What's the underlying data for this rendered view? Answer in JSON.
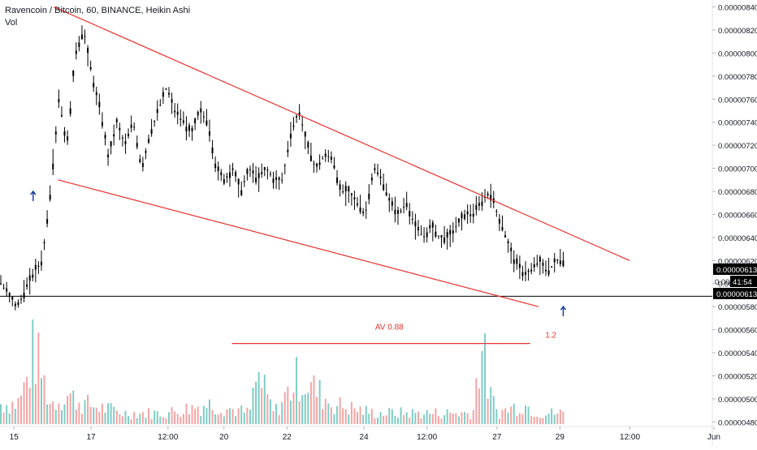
{
  "header": {
    "symbol_line": "Ravencoin / Bitcoin, 60, BINANCE, Heikin Ashi",
    "volume_label": "Vol"
  },
  "colors": {
    "candle": "#000000",
    "volume_up": "#7fcdc4",
    "volume_down": "#f4a4a4",
    "trendline": "#e8322f",
    "annotation_text": "#e8322f",
    "arrow": "#1a3d9e",
    "axis_text": "#131722",
    "price_tag_bg": "#000000",
    "price_tag_text": "#ffffff"
  },
  "chart_data": {
    "type": "candlestick",
    "y_ticks": [
      "0.00000840",
      "0.00000820",
      "0.00000800",
      "0.00000780",
      "0.00000760",
      "0.00000740",
      "0.00000720",
      "0.00000700",
      "0.00000680",
      "0.00000660",
      "0.00000640",
      "0.00000620",
      "0.00000600",
      "0.00000580",
      "0.00000560",
      "0.00000540",
      "0.00000520",
      "0.00000500",
      "0.00000480"
    ],
    "x_ticks": [
      "15",
      "17",
      "12:00",
      "20",
      "22",
      "24",
      "12:00",
      "27",
      "29",
      "12:00",
      "Jun"
    ],
    "ylim": [
      4.76e-06,
      8.46e-06
    ],
    "close_points": [
      [
        0,
        6e-06
      ],
      [
        2,
        5.8e-06
      ],
      [
        4,
        6.1e-06
      ],
      [
        5,
        6.2e-06
      ],
      [
        6,
        6.8e-06
      ],
      [
        7,
        7.6e-06
      ],
      [
        8,
        7.2e-06
      ],
      [
        9,
        8e-06
      ],
      [
        10,
        8.2e-06
      ],
      [
        11,
        7.8e-06
      ],
      [
        12,
        7.5e-06
      ],
      [
        13,
        7.1e-06
      ],
      [
        14,
        7.4e-06
      ],
      [
        15,
        7.2e-06
      ],
      [
        16,
        7.4e-06
      ],
      [
        17,
        7e-06
      ],
      [
        18,
        7.3e-06
      ],
      [
        20,
        7.7e-06
      ],
      [
        21,
        7.5e-06
      ],
      [
        22,
        7.4e-06
      ],
      [
        23,
        7.3e-06
      ],
      [
        24,
        7.5e-06
      ],
      [
        25,
        7.4e-06
      ],
      [
        26,
        7e-06
      ],
      [
        27,
        6.9e-06
      ],
      [
        28,
        7e-06
      ],
      [
        29,
        6.8e-06
      ],
      [
        30,
        7e-06
      ],
      [
        31,
        6.9e-06
      ],
      [
        32,
        7e-06
      ],
      [
        33,
        6.9e-06
      ],
      [
        34,
        6.9e-06
      ],
      [
        35,
        7.3e-06
      ],
      [
        36,
        7.5e-06
      ],
      [
        37,
        7.2e-06
      ],
      [
        38,
        7e-06
      ],
      [
        39,
        7.1e-06
      ],
      [
        40,
        7.1e-06
      ],
      [
        41,
        6.8e-06
      ],
      [
        42,
        6.8e-06
      ],
      [
        43,
        6.7e-06
      ],
      [
        44,
        6.6e-06
      ],
      [
        45,
        7e-06
      ],
      [
        46,
        6.9e-06
      ],
      [
        47,
        6.7e-06
      ],
      [
        48,
        6.6e-06
      ],
      [
        49,
        6.7e-06
      ],
      [
        50,
        6.5e-06
      ],
      [
        51,
        6.4e-06
      ],
      [
        52,
        6.5e-06
      ],
      [
        53,
        6.4e-06
      ],
      [
        54,
        6.4e-06
      ],
      [
        55,
        6.5e-06
      ],
      [
        56,
        6.6e-06
      ],
      [
        57,
        6.6e-06
      ],
      [
        58,
        6.7e-06
      ],
      [
        59,
        6.8e-06
      ],
      [
        60,
        6.6e-06
      ],
      [
        61,
        6.4e-06
      ],
      [
        62,
        6.2e-06
      ],
      [
        63,
        6.1e-06
      ],
      [
        64,
        6.1e-06
      ],
      [
        65,
        6.2e-06
      ],
      [
        66,
        6.1e-06
      ],
      [
        67,
        6.2e-06
      ],
      [
        68,
        6.2e-06
      ]
    ],
    "volume_series": [
      [
        0,
        5e-06
      ],
      [
        2,
        5e-06
      ],
      [
        3,
        5.2e-06
      ],
      [
        4,
        5.6e-06
      ],
      [
        5,
        5.3e-06
      ],
      [
        6,
        5e-06
      ],
      [
        8,
        5.1e-06
      ],
      [
        10,
        5e-06
      ],
      [
        15,
        4.9e-06
      ],
      [
        20,
        4.9e-06
      ],
      [
        25,
        5e-06
      ],
      [
        30,
        4.9e-06
      ],
      [
        31,
        5.3e-06
      ],
      [
        33,
        4.9e-06
      ],
      [
        36,
        5.3e-06
      ],
      [
        40,
        5e-06
      ],
      [
        45,
        4.9e-06
      ],
      [
        50,
        4.9e-06
      ],
      [
        55,
        4.9e-06
      ],
      [
        57,
        4.9e-06
      ],
      [
        58,
        5.7e-06
      ],
      [
        59,
        5.1e-06
      ],
      [
        60,
        4.9e-06
      ],
      [
        63,
        5e-06
      ],
      [
        65,
        4.9e-06
      ],
      [
        68,
        4.9e-06
      ]
    ],
    "trendlines": [
      {
        "from": [
          6.5,
          8.4e-06
        ],
        "to": [
          76,
          6.2e-06
        ]
      },
      {
        "from": [
          7,
          6.9e-06
        ],
        "to": [
          65,
          5.8e-06
        ]
      },
      {
        "from": [
          28,
          5.48e-06
        ],
        "to": [
          64,
          5.48e-06
        ]
      }
    ],
    "annotations": [
      {
        "text": "AV 0.88",
        "x": 47,
        "y": 5.6e-06
      },
      {
        "text": "1.2",
        "x": 66.5,
        "y": 5.53e-06
      }
    ],
    "up_arrows": [
      {
        "x": 4,
        "y": 6.8e-06
      },
      {
        "x": 68,
        "y": 5.8e-06
      }
    ],
    "horizontal_line": 5.89e-06,
    "last_price_labels": [
      "0.00000613",
      "41:54",
      "0.00000613"
    ],
    "partial_tick_label": "0.00"
  }
}
